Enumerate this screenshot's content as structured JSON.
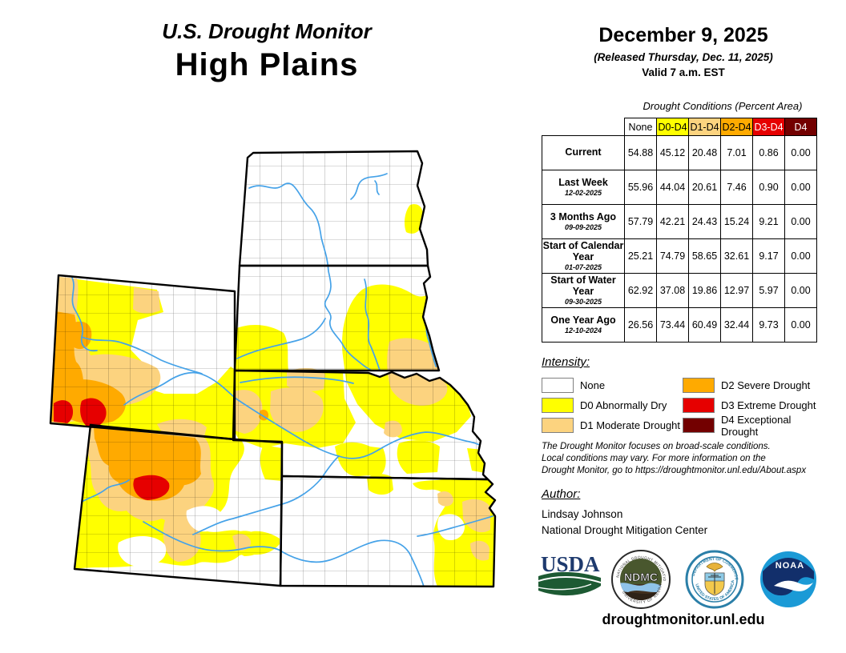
{
  "title": {
    "line1": "U.S. Drought Monitor",
    "line2": "High Plains"
  },
  "date_block": {
    "date": "December 9, 2025",
    "released": "(Released Thursday, Dec. 11, 2025)",
    "valid": "Valid 7 a.m. EST"
  },
  "table": {
    "caption": "Drought Conditions (Percent Area)",
    "header_cells": [
      {
        "label": "None",
        "bg": "#FFFFFF",
        "fg": "#000000"
      },
      {
        "label": "D0-D4",
        "bg": "#FFFF00",
        "fg": "#000000"
      },
      {
        "label": "D1-D4",
        "bg": "#FCD37F",
        "fg": "#000000"
      },
      {
        "label": "D2-D4",
        "bg": "#FFAA00",
        "fg": "#000000"
      },
      {
        "label": "D3-D4",
        "bg": "#E60000",
        "fg": "#FFFFFF"
      },
      {
        "label": "D4",
        "bg": "#730000",
        "fg": "#FFFFFF"
      }
    ],
    "rows": [
      {
        "label": "Current",
        "sub": "",
        "values": [
          "54.88",
          "45.12",
          "20.48",
          "7.01",
          "0.86",
          "0.00"
        ]
      },
      {
        "label": "Last Week",
        "sub": "12-02-2025",
        "values": [
          "55.96",
          "44.04",
          "20.61",
          "7.46",
          "0.90",
          "0.00"
        ]
      },
      {
        "label": "3 Months Ago",
        "sub": "09-09-2025",
        "values": [
          "57.79",
          "42.21",
          "24.43",
          "15.24",
          "9.21",
          "0.00"
        ]
      },
      {
        "label": "Start of Calendar Year",
        "sub": "01-07-2025",
        "values": [
          "25.21",
          "74.79",
          "58.65",
          "32.61",
          "9.17",
          "0.00"
        ]
      },
      {
        "label": "Start of Water Year",
        "sub": "09-30-2025",
        "values": [
          "62.92",
          "37.08",
          "19.86",
          "12.97",
          "5.97",
          "0.00"
        ]
      },
      {
        "label": "One Year Ago",
        "sub": "12-10-2024",
        "values": [
          "26.56",
          "73.44",
          "60.49",
          "32.44",
          "9.73",
          "0.00"
        ]
      }
    ]
  },
  "legend": {
    "title": "Intensity:",
    "items": [
      {
        "label": "None",
        "color": "#FFFFFF"
      },
      {
        "label": "D0 Abnormally Dry",
        "color": "#FFFF00"
      },
      {
        "label": "D1 Moderate Drought",
        "color": "#FCD37F"
      },
      {
        "label": "D2 Severe Drought",
        "color": "#FFAA00"
      },
      {
        "label": "D3 Extreme Drought",
        "color": "#E60000"
      },
      {
        "label": "D4 Exceptional Drought",
        "color": "#730000"
      }
    ]
  },
  "disclaimer_lines": [
    "The Drought Monitor focuses on broad-scale conditions.",
    "Local conditions may vary. For more information on the",
    "Drought Monitor, go to https://droughtmonitor.unl.edu/About.aspx"
  ],
  "author": {
    "title": "Author:",
    "name": "Lindsay Johnson",
    "org": "National Drought Mitigation Center"
  },
  "logos": {
    "usda_text": "USDA",
    "ndmc_text": "NDMC",
    "ndmc_ring_top": "NATIONAL DROUGHT MITIGATION CENTER",
    "ndmc_ring_bottom": "UNIVERSITY OF NEBRASKA",
    "doc_ring_top": "DEPARTMENT OF COMMERCE",
    "doc_ring_bottom": "UNITED STATES OF AMERICA",
    "noaa_text": "NOAA"
  },
  "footer": {
    "url": "droughtmonitor.unl.edu"
  },
  "map": {
    "region": "High Plains",
    "states": [
      "North Dakota",
      "South Dakota",
      "Wyoming",
      "Nebraska",
      "Colorado",
      "Kansas"
    ],
    "drought_colors": {
      "none": "#FFFFFF",
      "d0": "#FFFF00",
      "d1": "#FCD37F",
      "d2": "#FFAA00",
      "d3": "#E60000",
      "d4": "#730000"
    },
    "river_color": "#45A2E8"
  }
}
